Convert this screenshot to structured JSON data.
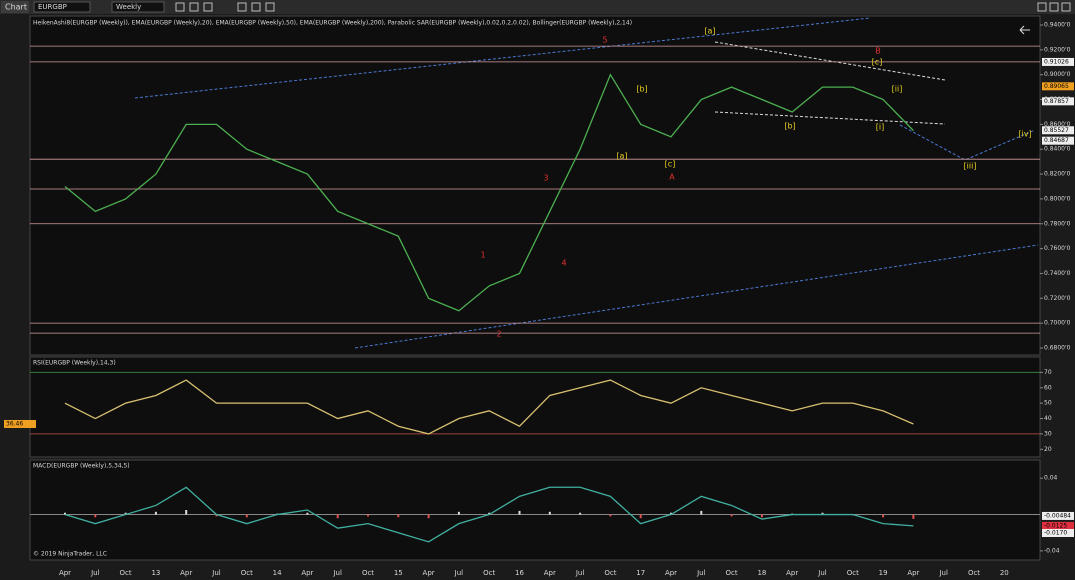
{
  "toolbar": {
    "title": "Chart",
    "instrument": "EURGBP",
    "period": "Weekly"
  },
  "time_axis": {
    "labels": [
      "Apr",
      "Jul",
      "Oct",
      "13",
      "Apr",
      "Jul",
      "Oct",
      "14",
      "Apr",
      "Jul",
      "Oct",
      "15",
      "Apr",
      "Jul",
      "Oct",
      "16",
      "Apr",
      "Jul",
      "Oct",
      "17",
      "Apr",
      "Jul",
      "Oct",
      "18",
      "Apr",
      "Jul",
      "Oct",
      "19",
      "Apr",
      "Jul",
      "Oct",
      "20"
    ]
  },
  "price_panel": {
    "indicators": "HeikenAshi8(EURGBP (Weekly)), EMA(EURGBP (Weekly),20), EMA(EURGBP (Weekly),50), EMA(EURGBP (Weekly),200), Parabolic SAR(EURGBP (Weekly),0.02,0.2,0.02), Bollinger(EURGBP (Weekly),2,14)",
    "ylim": [
      0.68,
      0.94
    ],
    "yticks": [
      {
        "value": 0.94,
        "label": "0.9400'0"
      },
      {
        "value": 0.92,
        "label": "0.9200'0"
      },
      {
        "value": 0.9,
        "label": "0.9000'0"
      },
      {
        "value": 0.88,
        "label": "0.8800'0"
      },
      {
        "value": 0.86,
        "label": "0.8600'0"
      },
      {
        "value": 0.84,
        "label": "0.8400'0"
      },
      {
        "value": 0.82,
        "label": "0.8200'0"
      },
      {
        "value": 0.8,
        "label": "0.8000'0"
      },
      {
        "value": 0.78,
        "label": "0.7800'0"
      },
      {
        "value": 0.76,
        "label": "0.7600'0"
      },
      {
        "value": 0.74,
        "label": "0.7400'0"
      },
      {
        "value": 0.72,
        "label": "0.7200'0"
      },
      {
        "value": 0.7,
        "label": "0.7000'0"
      },
      {
        "value": 0.68,
        "label": "0.6800'0"
      }
    ],
    "levels": [
      0.923,
      0.9103,
      0.832,
      0.808,
      0.78,
      0.7,
      0.692
    ],
    "markers": [
      {
        "value": 0.91026,
        "label": "0.91026"
      },
      {
        "value": 0.89065,
        "label": "0.89065"
      },
      {
        "value": 0.87857,
        "label": "0.87857"
      },
      {
        "value": 0.85527,
        "label": "0.85527"
      },
      {
        "value": 0.84687,
        "label": "0.84687"
      }
    ],
    "values": [
      0.81,
      0.79,
      0.8,
      0.82,
      0.86,
      0.86,
      0.84,
      0.83,
      0.82,
      0.79,
      0.78,
      0.77,
      0.72,
      0.71,
      0.73,
      0.74,
      0.79,
      0.84,
      0.9,
      0.86,
      0.85,
      0.88,
      0.89,
      0.88,
      0.87,
      0.89,
      0.89,
      0.88,
      0.855,
      null,
      null,
      null
    ],
    "wave_labels": [
      "5",
      "[a]",
      "B",
      "[c]",
      "[ii]",
      "[b]",
      "[i]",
      "[b]",
      "[a]",
      "[c]",
      "A",
      "3",
      "4",
      "1",
      "2",
      "[iii]",
      "[iv]"
    ]
  },
  "rsi_panel": {
    "indicators": "RSI(EURGBP (Weekly),14,3)",
    "ylim": [
      15,
      80
    ],
    "yticks": [
      20,
      30,
      40,
      50,
      60,
      70
    ],
    "levels": [
      70,
      30
    ],
    "marker": {
      "value": 36.46,
      "label": "36.46"
    },
    "values": [
      50,
      40,
      50,
      55,
      65,
      50,
      50,
      50,
      50,
      40,
      45,
      35,
      30,
      40,
      45,
      35,
      55,
      60,
      65,
      55,
      50,
      60,
      55,
      50,
      45,
      50,
      50,
      45,
      36.46,
      null,
      null,
      null
    ]
  },
  "macd_panel": {
    "indicators": "MACD(EURGBP (Weekly),5,34,5)",
    "ylim": [
      -0.05,
      0.06
    ],
    "yticks": [
      0.04,
      -0.04
    ],
    "markers": [
      {
        "value": -0.00484,
        "label": "-0.00484"
      },
      {
        "value": -0.0125,
        "label": "-0.0125"
      },
      {
        "value": -0.017,
        "label": "-0.0170"
      }
    ],
    "values": [
      0,
      -0.01,
      0,
      0.01,
      0.03,
      0,
      -0.01,
      0,
      0.005,
      -0.015,
      -0.01,
      -0.02,
      -0.03,
      -0.01,
      0,
      0.02,
      0.03,
      0.03,
      0.02,
      -0.01,
      0,
      0.02,
      0.01,
      -0.005,
      0,
      0,
      0,
      -0.01,
      -0.0125,
      null,
      null,
      null
    ],
    "histogram": [
      0.002,
      -0.003,
      0.002,
      0.003,
      0.005,
      -0.002,
      -0.003,
      0.001,
      0.002,
      -0.004,
      -0.002,
      -0.003,
      -0.004,
      0.003,
      0.002,
      0.004,
      0.003,
      0.002,
      -0.002,
      -0.004,
      0.002,
      0.004,
      -0.002,
      -0.003,
      0.001,
      0.002,
      -0.001,
      -0.003,
      -0.00484,
      null,
      null,
      null
    ]
  },
  "copyright": "© 2019 NinjaTrader, LLC"
}
